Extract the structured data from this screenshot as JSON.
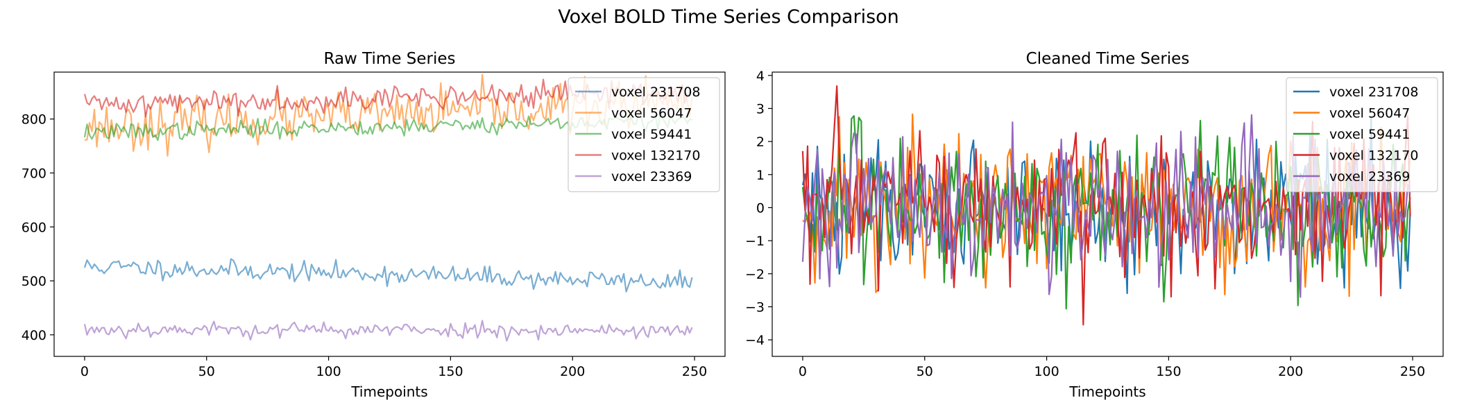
{
  "figure": {
    "title": "Voxel BOLD Time Series Comparison"
  },
  "chart_data": [
    {
      "type": "line",
      "title": "Raw Time Series",
      "xlabel": "Timepoints",
      "ylabel": "",
      "xlim": [
        -12.5,
        262.5
      ],
      "ylim": [
        360,
        887
      ],
      "xticks": [
        0,
        50,
        100,
        150,
        200,
        250
      ],
      "yticks": [
        400,
        500,
        600,
        700,
        800
      ],
      "legend": "top-right",
      "alpha": 0.6,
      "series": [
        {
          "name": "voxel 231708",
          "color": "#1f77b4",
          "mean": 527,
          "trend": -30,
          "noise": 9,
          "seed": 11
        },
        {
          "name": "voxel 56047",
          "color": "#ff7f0e",
          "mean": 785,
          "trend": 45,
          "noise": 22,
          "seed": 23
        },
        {
          "name": "voxel 59441",
          "color": "#2ca02c",
          "mean": 775,
          "trend": 22,
          "noise": 8,
          "seed": 37
        },
        {
          "name": "voxel 132170",
          "color": "#d62728",
          "mean": 828,
          "trend": 22,
          "noise": 11,
          "seed": 41
        },
        {
          "name": "voxel 23369",
          "color": "#9467bd",
          "mean": 410,
          "trend": -2,
          "noise": 7,
          "seed": 53
        }
      ]
    },
    {
      "type": "line",
      "title": "Cleaned Time Series",
      "xlabel": "Timepoints",
      "ylabel": "",
      "xlim": [
        -12.5,
        262.5
      ],
      "ylim": [
        -4.5,
        4.1
      ],
      "xticks": [
        0,
        50,
        100,
        150,
        200,
        250
      ],
      "yticks": [
        -4,
        -3,
        -2,
        -1,
        0,
        1,
        2,
        3,
        4
      ],
      "legend": "top-right",
      "alpha": 1.0,
      "series": [
        {
          "name": "voxel 231708",
          "color": "#1f77b4",
          "mean": 0,
          "trend": 0,
          "noise": 1.1,
          "seed": 61
        },
        {
          "name": "voxel 56047",
          "color": "#ff7f0e",
          "mean": 0,
          "trend": 0,
          "noise": 1.2,
          "seed": 71
        },
        {
          "name": "voxel 59441",
          "color": "#2ca02c",
          "mean": 0,
          "trend": 0,
          "noise": 1.1,
          "seed": 83
        },
        {
          "name": "voxel 132170",
          "color": "#d62728",
          "mean": 0,
          "trend": 0,
          "noise": 1.2,
          "seed": 97
        },
        {
          "name": "voxel 23369",
          "color": "#9467bd",
          "mean": 0,
          "trend": 0,
          "noise": 1.1,
          "seed": 101
        }
      ]
    }
  ]
}
